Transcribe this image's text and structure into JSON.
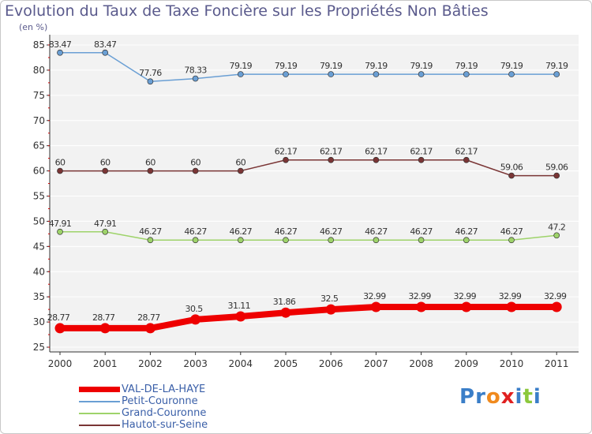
{
  "chart_data": {
    "type": "line",
    "title": "Evolution du Taux de Taxe Foncière sur les Propriétés Non Bâties",
    "ylabel": "(en %)",
    "xlabel": "",
    "ylim": [
      25,
      85
    ],
    "yticks": [
      25,
      30,
      35,
      40,
      45,
      50,
      55,
      60,
      65,
      70,
      75,
      80,
      85
    ],
    "x": [
      "2000",
      "2001",
      "2002",
      "2003",
      "2004",
      "2005",
      "2006",
      "2007",
      "2008",
      "2009",
      "2010",
      "2011"
    ],
    "series": [
      {
        "name": "VAL-DE-LA-HAYE",
        "color": "#ee0000",
        "values": [
          28.77,
          28.77,
          28.77,
          30.5,
          31.11,
          31.86,
          32.5,
          32.99,
          32.99,
          32.99,
          32.99,
          32.99
        ],
        "labels": [
          "28.77",
          "28.77",
          "28.77",
          "30.5",
          "31.11",
          "31.86",
          "32.5",
          "32.99",
          "32.99",
          "32.99",
          "32.99",
          "32.99"
        ]
      },
      {
        "name": "Petit-Couronne",
        "color": "#6a9fd4",
        "values": [
          83.47,
          83.47,
          77.76,
          78.33,
          79.19,
          79.19,
          79.19,
          79.19,
          79.19,
          79.19,
          79.19,
          79.19
        ],
        "labels": [
          "83.47",
          "83.47",
          "77.76",
          "78.33",
          "79.19",
          "79.19",
          "79.19",
          "79.19",
          "79.19",
          "79.19",
          "79.19",
          "79.19"
        ]
      },
      {
        "name": "Grand-Couronne",
        "color": "#9ed36a",
        "values": [
          47.91,
          47.91,
          46.27,
          46.27,
          46.27,
          46.27,
          46.27,
          46.27,
          46.27,
          46.27,
          46.27,
          47.2
        ],
        "labels": [
          "47.91",
          "47.91",
          "46.27",
          "46.27",
          "46.27",
          "46.27",
          "46.27",
          "46.27",
          "46.27",
          "46.27",
          "46.27",
          "47.2"
        ]
      },
      {
        "name": "Hautot-sur-Seine",
        "color": "#7a3535",
        "values": [
          60,
          60,
          60,
          60,
          60,
          62.17,
          62.17,
          62.17,
          62.17,
          62.17,
          59.06,
          59.06
        ],
        "labels": [
          "60",
          "60",
          "60",
          "60",
          "60",
          "62.17",
          "62.17",
          "62.17",
          "62.17",
          "62.17",
          "59.06",
          "59.06"
        ]
      }
    ]
  },
  "logo": {
    "letters": [
      "P",
      "r",
      "o",
      "x",
      "i",
      "t",
      "i"
    ],
    "colors": [
      "#3a7ec8",
      "#3a7ec8",
      "#f08a1e",
      "#e02020",
      "#3a7ec8",
      "#8cc83c",
      "#3a7ec8"
    ]
  }
}
